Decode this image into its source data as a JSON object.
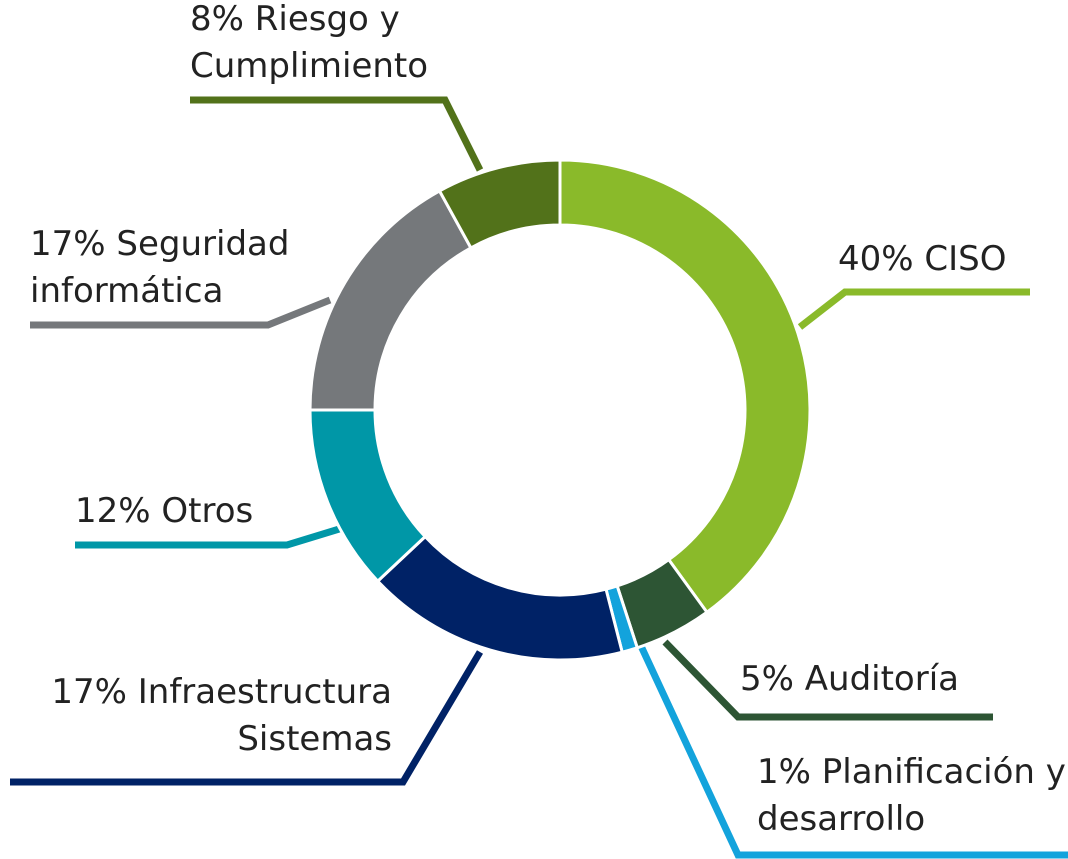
{
  "chart_data": {
    "type": "donut",
    "categories": [
      "CISO",
      "Auditoría",
      "Planificación y desarrollo",
      "Infraestructura Sistemas",
      "Otros",
      "Seguridad informática",
      "Riesgo y Cumplimiento"
    ],
    "values": [
      40,
      5,
      1,
      17,
      12,
      17,
      8
    ],
    "value_labels": [
      "40%",
      "5%",
      "1%",
      "17%",
      "12%",
      "17%",
      "8%"
    ],
    "colors": [
      "#8aba2a",
      "#2d5534",
      "#13a3dc",
      "#002266",
      "#0097a7",
      "#75787b",
      "#52721a"
    ]
  }
}
